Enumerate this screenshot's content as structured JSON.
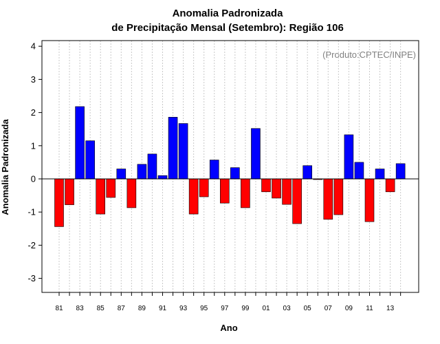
{
  "chart_data": {
    "type": "bar",
    "title": "Anomalia Padronizada",
    "subtitle": "de Precipitação Mensal (Setembro): Região 106",
    "xlabel": "Ano",
    "ylabel": "Anomalia Padronizada",
    "source_note": "(Produto:CPTEC/INPE)",
    "ylim": [
      -3.4,
      4.2
    ],
    "yticks": [
      -3,
      -2,
      -1,
      0,
      1,
      2,
      3,
      4
    ],
    "grid": true,
    "categories": [
      "81",
      "82",
      "83",
      "84",
      "85",
      "86",
      "87",
      "88",
      "89",
      "90",
      "91",
      "92",
      "93",
      "94",
      "95",
      "96",
      "97",
      "98",
      "99",
      "00",
      "01",
      "02",
      "03",
      "04",
      "05",
      "06",
      "07",
      "08",
      "09",
      "10",
      "11",
      "12",
      "13",
      "14"
    ],
    "xtick_labels": [
      "81",
      "83",
      "85",
      "87",
      "89",
      "91",
      "93",
      "95",
      "97",
      "99",
      "01",
      "03",
      "05",
      "07",
      "09",
      "11",
      "13"
    ],
    "values": [
      -1.44,
      -0.78,
      2.18,
      1.15,
      -1.06,
      -0.56,
      0.3,
      -0.87,
      0.44,
      0.75,
      0.1,
      1.86,
      1.67,
      -1.06,
      -0.54,
      0.57,
      -0.73,
      0.34,
      -0.87,
      1.52,
      -0.39,
      -0.58,
      -0.77,
      -1.35,
      0.4,
      -0.02,
      -1.22,
      -1.08,
      1.33,
      0.5,
      -1.29,
      0.3,
      -0.39,
      0.46
    ],
    "colors": {
      "positive": "#0000ff",
      "negative": "#ff0000",
      "grid": "#c8c8c8",
      "zero_line": "#000000"
    }
  }
}
